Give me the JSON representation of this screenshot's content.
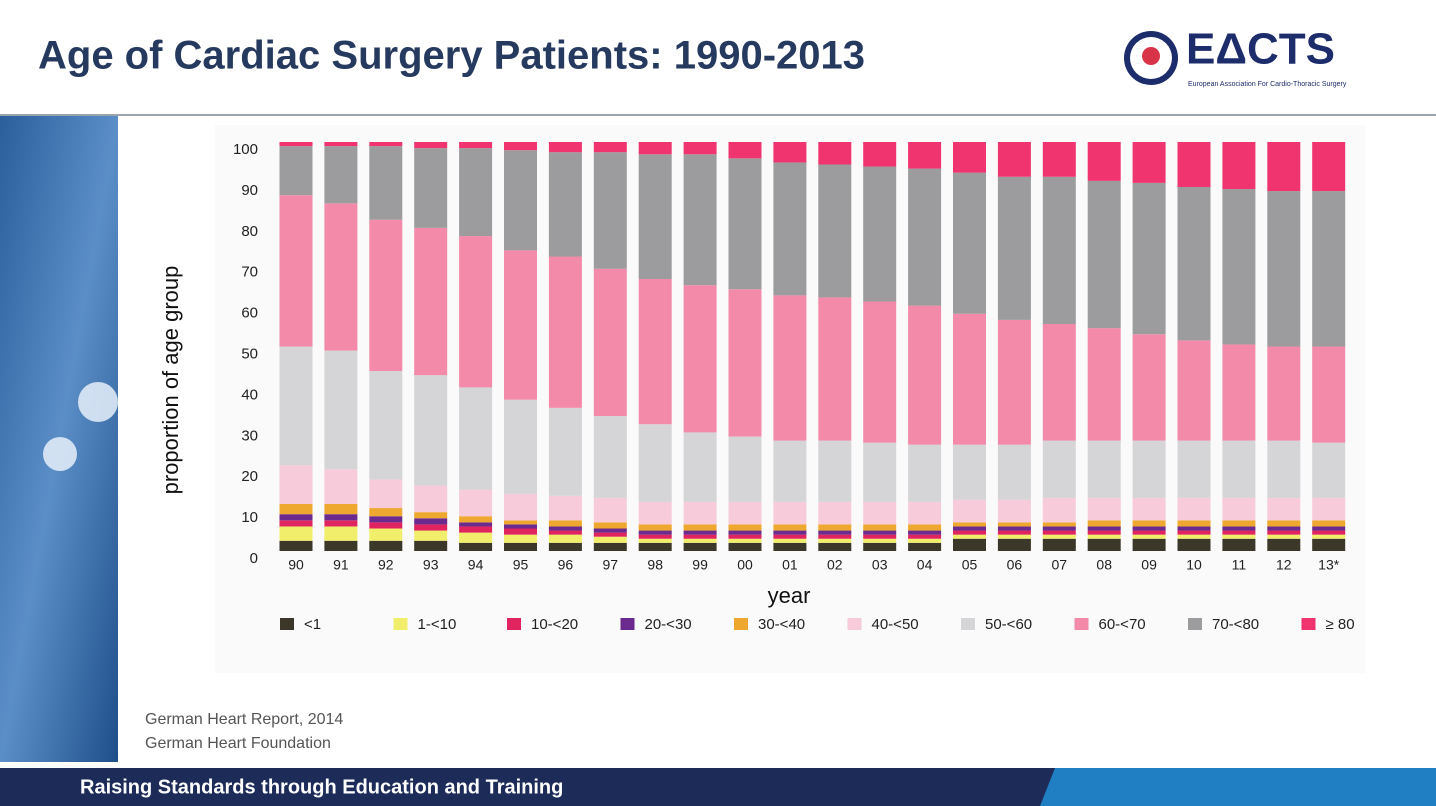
{
  "header": {
    "title": "Age of Cardiac Surgery Patients: 1990-2013"
  },
  "logo": {
    "text": "EΔCTS",
    "subtitle": "European Association For Cardio-Thoracic Surgery"
  },
  "source": {
    "lines": [
      "German Heart Report, 2014",
      "German Heart Foundation"
    ]
  },
  "footer": {
    "text": "Raising Standards through Education and Training"
  },
  "chart_data": {
    "type": "bar",
    "stacked": true,
    "ylabel": "proportion of age group",
    "xlabel": "year",
    "categories": [
      "90",
      "91",
      "92",
      "93",
      "94",
      "95",
      "96",
      "97",
      "98",
      "99",
      "00",
      "01",
      "02",
      "03",
      "04",
      "05",
      "06",
      "07",
      "08",
      "09",
      "10",
      "11",
      "12",
      "13*"
    ],
    "ylim": [
      0,
      100
    ],
    "yticks": [
      0,
      10,
      20,
      30,
      40,
      50,
      60,
      70,
      80,
      90,
      100
    ],
    "series": [
      {
        "name": "<1",
        "color": "#3b3729",
        "values": [
          2.5,
          2.5,
          2.5,
          2.5,
          2,
          2,
          2,
          2,
          2,
          2,
          2,
          2,
          2,
          2,
          2,
          3,
          3,
          3,
          3,
          3,
          3,
          3,
          3,
          3
        ]
      },
      {
        "name": "1-<10",
        "color": "#f1ee6c",
        "values": [
          3.5,
          3.5,
          3,
          2.5,
          2.5,
          2,
          2,
          1.5,
          1,
          1,
          1,
          1,
          1,
          1,
          1,
          1,
          1,
          1,
          1,
          1,
          1,
          1,
          1,
          1
        ]
      },
      {
        "name": "10-<20",
        "color": "#df2460",
        "values": [
          1.5,
          1.5,
          1.5,
          1.5,
          1.5,
          1.5,
          1,
          1,
          1,
          1,
          1,
          1,
          1,
          1,
          1,
          1,
          1,
          1,
          1,
          1,
          1,
          1,
          1,
          1
        ]
      },
      {
        "name": "20-<30",
        "color": "#6b2a8d",
        "values": [
          1.5,
          1.5,
          1.5,
          1.5,
          1,
          1,
          1,
          1,
          1,
          1,
          1,
          1,
          1,
          1,
          1,
          1,
          1,
          1,
          1,
          1,
          1,
          1,
          1,
          1
        ]
      },
      {
        "name": "30-<40",
        "color": "#efa82f",
        "values": [
          2.5,
          2.5,
          2,
          1.5,
          1.5,
          1,
          1.5,
          1.5,
          1.5,
          1.5,
          1.5,
          1.5,
          1.5,
          1.5,
          1.5,
          1,
          1,
          1,
          1.5,
          1.5,
          1.5,
          1.5,
          1.5,
          1.5
        ]
      },
      {
        "name": "40-<50",
        "color": "#f7cbd9",
        "values": [
          9.5,
          8.5,
          7,
          6.5,
          6.5,
          6.5,
          6,
          6,
          5.5,
          5.5,
          5.5,
          5.5,
          5.5,
          5.5,
          5.5,
          5.5,
          5.5,
          6,
          5.5,
          5.5,
          5.5,
          5.5,
          5.5,
          5.5
        ]
      },
      {
        "name": "50-<60",
        "color": "#d5d5d7",
        "values": [
          29,
          29,
          26.5,
          27,
          25,
          23,
          21.5,
          20,
          19,
          17,
          16,
          15,
          15,
          14.5,
          14,
          13.5,
          13.5,
          14,
          14,
          14,
          14,
          14,
          14,
          13.5
        ]
      },
      {
        "name": "60-<70",
        "color": "#f38aa9",
        "values": [
          37,
          36,
          37,
          36,
          37,
          36.5,
          37,
          36,
          35.5,
          36,
          36,
          35.5,
          35,
          34.5,
          34,
          32,
          30.5,
          28.5,
          27.5,
          26,
          24.5,
          23.5,
          23,
          23.5
        ]
      },
      {
        "name": "70-<80",
        "color": "#9c9c9e",
        "values": [
          12,
          14,
          18,
          19.5,
          21.5,
          24.5,
          25.5,
          28.5,
          30.5,
          32,
          32,
          32.5,
          32.5,
          33,
          33.5,
          34.5,
          35,
          36,
          36,
          37,
          37.5,
          38,
          38,
          38
        ]
      },
      {
        "name": "≥ 80",
        "color": "#f0346f",
        "values": [
          1,
          1,
          1,
          1.5,
          1.5,
          2,
          2.5,
          2.5,
          3,
          3,
          4,
          5,
          5.5,
          6,
          6.5,
          7.5,
          8.5,
          8.5,
          9.5,
          10,
          11,
          11.5,
          12,
          12
        ]
      }
    ]
  }
}
